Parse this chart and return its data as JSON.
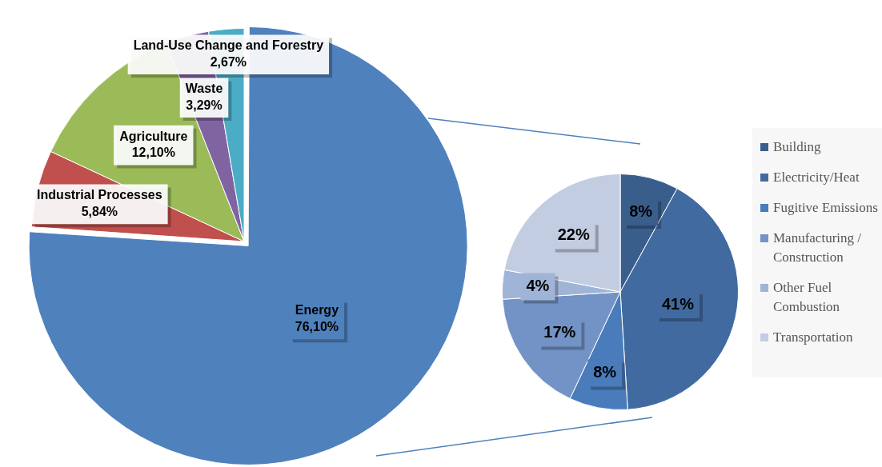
{
  "chart_data": [
    {
      "type": "pie",
      "categories": [
        "Energy",
        "Industrial Processes",
        "Agriculture",
        "Waste",
        "Land-Use Change and Forestry"
      ],
      "values": [
        76.1,
        5.84,
        12.1,
        3.29,
        2.67
      ],
      "colors": [
        "#4f81bd",
        "#c0504d",
        "#9bbb59",
        "#8064a2",
        "#4bacc6"
      ],
      "value_labels": [
        "76,10%",
        "5,84%",
        "12,10%",
        "3,29%",
        "2,67%"
      ]
    },
    {
      "type": "pie",
      "categories": [
        "Building",
        "Electricity/Heat",
        "Fugitive Emissions",
        "Manufacturing / Construction",
        "Other Fuel Combustion",
        "Transportation"
      ],
      "values": [
        8,
        41,
        8,
        17,
        4,
        22
      ],
      "colors": [
        "#395e8b",
        "#416ba0",
        "#4a7bbb",
        "#7393c6",
        "#a0b4d7",
        "#c3cde2"
      ],
      "value_labels": [
        "8%",
        "41%",
        "8%",
        "17%",
        "4%",
        "22%"
      ],
      "legend": "right"
    }
  ]
}
